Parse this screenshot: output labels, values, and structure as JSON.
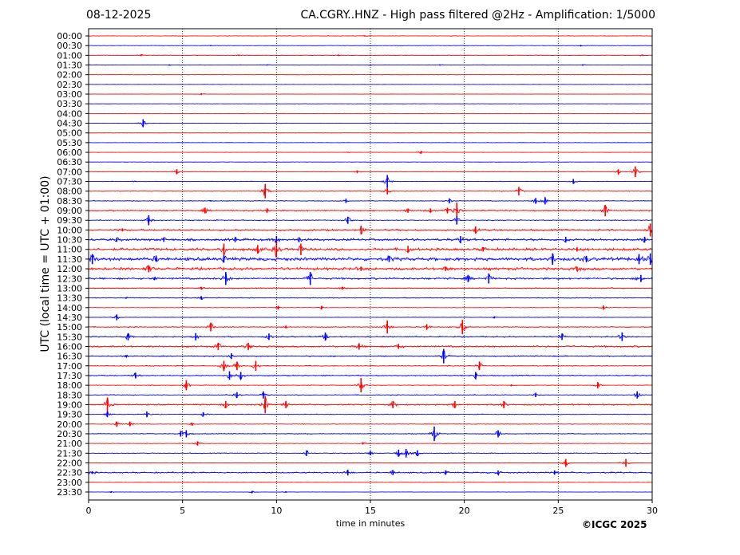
{
  "header": {
    "date": "08-12-2025",
    "title": "CA.CGRY..HNZ - High pass filtered @2Hz - Amplification: 1/5000"
  },
  "copyright": "©ICGC 2025",
  "colors": {
    "even_row": "#ff0000",
    "odd_row": "#0000ff",
    "grid": "#000000"
  },
  "chart_data": {
    "type": "line",
    "title": "CA.CGRY..HNZ - High pass filtered @2Hz - Amplification: 1/5000",
    "xlabel": "time in minutes",
    "ylabel": "UTC (local time = UTC + 01:00)",
    "xlim": [
      0,
      30
    ],
    "x_ticks": [
      "0",
      "5",
      "10",
      "15",
      "20",
      "25",
      "30"
    ],
    "grid": "vertical dotted lines at 5-minute intervals",
    "row_color_pattern": [
      "red",
      "blue"
    ],
    "rows": [
      {
        "label": "00:00",
        "activity": 0.03,
        "events": [
          [
            14.7,
            0.08
          ]
        ]
      },
      {
        "label": "00:30",
        "activity": 0.03,
        "events": [
          [
            6.5,
            0.08
          ],
          [
            26.2,
            0.1
          ]
        ]
      },
      {
        "label": "01:00",
        "activity": 0.03,
        "events": [
          [
            2.8,
            0.12
          ],
          [
            8.0,
            0.1
          ],
          [
            13.3,
            0.08
          ],
          [
            29.5,
            0.1
          ]
        ]
      },
      {
        "label": "01:30",
        "activity": 0.03,
        "events": [
          [
            4.3,
            0.08
          ],
          [
            9.5,
            0.08
          ],
          [
            15.0,
            0.1
          ],
          [
            18.7,
            0.08
          ],
          [
            26.3,
            0.1
          ]
        ]
      },
      {
        "label": "02:00",
        "activity": 0.02,
        "events": []
      },
      {
        "label": "02:30",
        "activity": 0.02,
        "events": []
      },
      {
        "label": "03:00",
        "activity": 0.02,
        "events": [
          [
            6.0,
            0.12
          ]
        ]
      },
      {
        "label": "03:30",
        "activity": 0.02,
        "events": []
      },
      {
        "label": "04:00",
        "activity": 0.02,
        "events": []
      },
      {
        "label": "04:30",
        "activity": 0.02,
        "events": [
          [
            2.9,
            0.55
          ]
        ]
      },
      {
        "label": "05:00",
        "activity": 0.02,
        "events": []
      },
      {
        "label": "05:30",
        "activity": 0.02,
        "events": []
      },
      {
        "label": "06:00",
        "activity": 0.02,
        "events": [
          [
            17.7,
            0.2
          ],
          [
            13.8,
            0.06
          ]
        ]
      },
      {
        "label": "06:30",
        "activity": 0.02,
        "events": []
      },
      {
        "label": "07:00",
        "activity": 0.03,
        "events": [
          [
            4.7,
            0.35
          ],
          [
            14.3,
            0.2
          ],
          [
            28.2,
            0.35
          ],
          [
            29.1,
            0.75
          ]
        ]
      },
      {
        "label": "07:30",
        "activity": 0.03,
        "events": [
          [
            15.9,
            0.9
          ],
          [
            25.8,
            0.35
          ],
          [
            2.5,
            0.06
          ]
        ]
      },
      {
        "label": "08:00",
        "activity": 0.04,
        "events": [
          [
            9.4,
            1.0
          ],
          [
            15.9,
            0.45
          ],
          [
            22.9,
            0.6
          ]
        ]
      },
      {
        "label": "08:30",
        "activity": 0.05,
        "events": [
          [
            13.7,
            0.3
          ],
          [
            19.2,
            0.35
          ],
          [
            23.8,
            0.4
          ],
          [
            24.3,
            0.5
          ],
          [
            6.5,
            0.1
          ]
        ]
      },
      {
        "label": "09:00",
        "activity": 0.08,
        "events": [
          [
            6.2,
            0.4
          ],
          [
            9.5,
            0.3
          ],
          [
            17.0,
            0.3
          ],
          [
            18.2,
            0.3
          ],
          [
            19.1,
            0.4
          ],
          [
            19.6,
            1.1
          ],
          [
            27.5,
            0.8
          ]
        ]
      },
      {
        "label": "09:30",
        "activity": 0.06,
        "events": [
          [
            3.2,
            0.7
          ],
          [
            13.8,
            0.5
          ],
          [
            19.6,
            0.6
          ]
        ]
      },
      {
        "label": "10:00",
        "activity": 0.1,
        "events": [
          [
            14.5,
            0.6
          ],
          [
            20.6,
            0.5
          ],
          [
            29.9,
            0.9
          ],
          [
            1.8,
            0.2
          ]
        ]
      },
      {
        "label": "10:30",
        "activity": 0.14,
        "events": [
          [
            1.5,
            0.3
          ],
          [
            4.0,
            0.3
          ],
          [
            7.8,
            0.35
          ],
          [
            10.0,
            0.5
          ],
          [
            11.2,
            0.35
          ],
          [
            19.8,
            0.5
          ],
          [
            25.4,
            0.4
          ],
          [
            29.6,
            0.4
          ]
        ]
      },
      {
        "label": "11:00",
        "activity": 0.16,
        "events": [
          [
            7.2,
            0.8
          ],
          [
            9.0,
            0.6
          ],
          [
            10.0,
            1.1
          ],
          [
            11.3,
            0.8
          ],
          [
            17.0,
            0.5
          ],
          [
            21.0,
            0.3
          ],
          [
            26.0,
            0.3
          ]
        ]
      },
      {
        "label": "11:30",
        "activity": 0.2,
        "events": [
          [
            0.2,
            0.7
          ],
          [
            3.6,
            0.4
          ],
          [
            7.2,
            0.5
          ],
          [
            16.0,
            0.4
          ],
          [
            24.7,
            0.8
          ],
          [
            26.5,
            0.45
          ],
          [
            29.3,
            0.7
          ],
          [
            29.9,
            0.8
          ]
        ]
      },
      {
        "label": "12:00",
        "activity": 0.16,
        "events": [
          [
            3.2,
            0.5
          ],
          [
            14.5,
            0.3
          ],
          [
            19.0,
            0.3
          ],
          [
            26.0,
            0.3
          ]
        ]
      },
      {
        "label": "12:30",
        "activity": 0.12,
        "events": [
          [
            7.3,
            0.9
          ],
          [
            11.8,
            0.9
          ],
          [
            20.2,
            0.5
          ],
          [
            21.3,
            0.7
          ],
          [
            29.4,
            0.5
          ],
          [
            3.5,
            0.2
          ]
        ]
      },
      {
        "label": "13:00",
        "activity": 0.06,
        "events": [
          [
            6.0,
            0.2
          ],
          [
            13.5,
            0.2
          ]
        ]
      },
      {
        "label": "13:30",
        "activity": 0.05,
        "events": [
          [
            6.0,
            0.25
          ],
          [
            2.0,
            0.1
          ]
        ]
      },
      {
        "label": "14:00",
        "activity": 0.03,
        "events": [
          [
            10.1,
            0.25
          ],
          [
            12.4,
            0.25
          ],
          [
            27.4,
            0.3
          ]
        ]
      },
      {
        "label": "14:30",
        "activity": 0.03,
        "events": [
          [
            1.5,
            0.4
          ],
          [
            21.6,
            0.15
          ]
        ]
      },
      {
        "label": "15:00",
        "activity": 0.06,
        "events": [
          [
            6.5,
            0.6
          ],
          [
            15.9,
            0.9
          ],
          [
            18.0,
            0.4
          ],
          [
            19.9,
            1.0
          ],
          [
            10.5,
            0.15
          ]
        ]
      },
      {
        "label": "15:30",
        "activity": 0.07,
        "events": [
          [
            2.1,
            0.5
          ],
          [
            5.7,
            0.5
          ],
          [
            9.6,
            0.45
          ],
          [
            12.6,
            0.55
          ],
          [
            25.2,
            0.45
          ],
          [
            28.4,
            0.6
          ]
        ]
      },
      {
        "label": "16:00",
        "activity": 0.1,
        "events": [
          [
            6.9,
            0.5
          ],
          [
            8.5,
            0.5
          ],
          [
            14.4,
            0.45
          ],
          [
            16.5,
            0.35
          ]
        ]
      },
      {
        "label": "16:30",
        "activity": 0.07,
        "events": [
          [
            7.6,
            0.4
          ],
          [
            18.9,
            1.0
          ],
          [
            2.0,
            0.15
          ]
        ]
      },
      {
        "label": "17:00",
        "activity": 0.05,
        "events": [
          [
            7.2,
            0.7
          ],
          [
            7.9,
            0.6
          ],
          [
            8.9,
            0.7
          ],
          [
            20.8,
            0.6
          ]
        ]
      },
      {
        "label": "17:30",
        "activity": 0.07,
        "events": [
          [
            2.5,
            0.4
          ],
          [
            7.5,
            0.6
          ],
          [
            8.1,
            0.5
          ],
          [
            20.6,
            0.5
          ]
        ]
      },
      {
        "label": "18:00",
        "activity": 0.04,
        "events": [
          [
            5.2,
            0.7
          ],
          [
            14.5,
            1.0
          ],
          [
            27.1,
            0.45
          ],
          [
            22.5,
            0.12
          ]
        ]
      },
      {
        "label": "18:30",
        "activity": 0.05,
        "events": [
          [
            7.9,
            0.4
          ],
          [
            9.3,
            0.5
          ],
          [
            23.8,
            0.3
          ],
          [
            29.2,
            0.5
          ]
        ]
      },
      {
        "label": "19:00",
        "activity": 0.08,
        "events": [
          [
            1.0,
            1.0
          ],
          [
            7.3,
            0.5
          ],
          [
            9.4,
            1.2
          ],
          [
            10.5,
            0.5
          ],
          [
            16.2,
            0.5
          ],
          [
            19.5,
            0.5
          ],
          [
            22.1,
            0.5
          ]
        ]
      },
      {
        "label": "19:30",
        "activity": 0.04,
        "events": [
          [
            1.0,
            0.4
          ],
          [
            3.1,
            0.4
          ],
          [
            6.1,
            0.3
          ]
        ]
      },
      {
        "label": "20:00",
        "activity": 0.04,
        "events": [
          [
            1.5,
            0.35
          ],
          [
            2.2,
            0.3
          ],
          [
            5.5,
            0.2
          ]
        ]
      },
      {
        "label": "20:30",
        "activity": 0.05,
        "events": [
          [
            4.9,
            0.4
          ],
          [
            5.2,
            0.5
          ],
          [
            18.4,
            1.0
          ],
          [
            21.8,
            0.5
          ]
        ]
      },
      {
        "label": "21:00",
        "activity": 0.03,
        "events": [
          [
            5.8,
            0.3
          ],
          [
            14.6,
            0.15
          ]
        ]
      },
      {
        "label": "21:30",
        "activity": 0.05,
        "events": [
          [
            11.6,
            0.4
          ],
          [
            15.0,
            0.3
          ],
          [
            16.5,
            0.5
          ],
          [
            16.9,
            0.6
          ],
          [
            17.5,
            0.4
          ]
        ]
      },
      {
        "label": "22:00",
        "activity": 0.03,
        "events": [
          [
            25.4,
            0.55
          ],
          [
            28.6,
            0.55
          ]
        ]
      },
      {
        "label": "22:30",
        "activity": 0.08,
        "events": [
          [
            13.8,
            0.4
          ],
          [
            16.2,
            0.35
          ],
          [
            19.0,
            0.3
          ],
          [
            21.8,
            0.3
          ],
          [
            24.8,
            0.3
          ],
          [
            0.2,
            0.2
          ]
        ]
      },
      {
        "label": "23:00",
        "activity": 0.02,
        "events": []
      },
      {
        "label": "23:30",
        "activity": 0.02,
        "events": [
          [
            1.2,
            0.1
          ],
          [
            8.7,
            0.15
          ],
          [
            10.5,
            0.1
          ]
        ]
      }
    ]
  }
}
